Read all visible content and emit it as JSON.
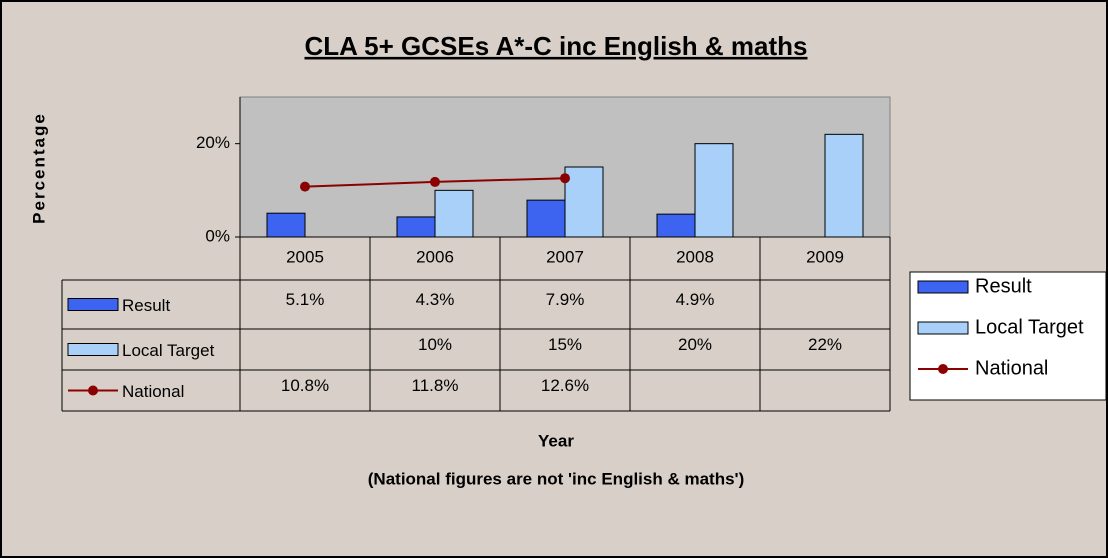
{
  "chart_data": {
    "type": "bar",
    "title": "CLA 5+ GCSEs A*-C inc English & maths",
    "y_label": "Percentage",
    "x_label": "Year",
    "note": "(National figures are not 'inc English & maths')",
    "categories": [
      "2005",
      "2006",
      "2007",
      "2008",
      "2009"
    ],
    "series": [
      {
        "name": "Result",
        "type": "bar",
        "color": "#3c64f0",
        "values": [
          5.1,
          4.3,
          7.9,
          4.9,
          null
        ],
        "value_labels": [
          "5.1%",
          "4.3%",
          "7.9%",
          "4.9%",
          null
        ]
      },
      {
        "name": "Local Target",
        "type": "bar",
        "color": "#a8d0f8",
        "values": [
          null,
          10,
          15,
          20,
          22
        ],
        "value_labels": [
          null,
          "10%",
          "15%",
          "20%",
          "22%"
        ]
      },
      {
        "name": "National",
        "type": "line",
        "color": "#8b0000",
        "values": [
          10.8,
          11.8,
          12.6,
          null,
          null
        ],
        "value_labels": [
          "10.8%",
          "11.8%",
          "12.6%",
          null,
          null
        ]
      }
    ],
    "ylim": [
      0,
      30
    ],
    "yticks": [
      {
        "value": 0,
        "label": "0%"
      },
      {
        "value": 20,
        "label": "20%"
      }
    ],
    "legend": "right"
  }
}
